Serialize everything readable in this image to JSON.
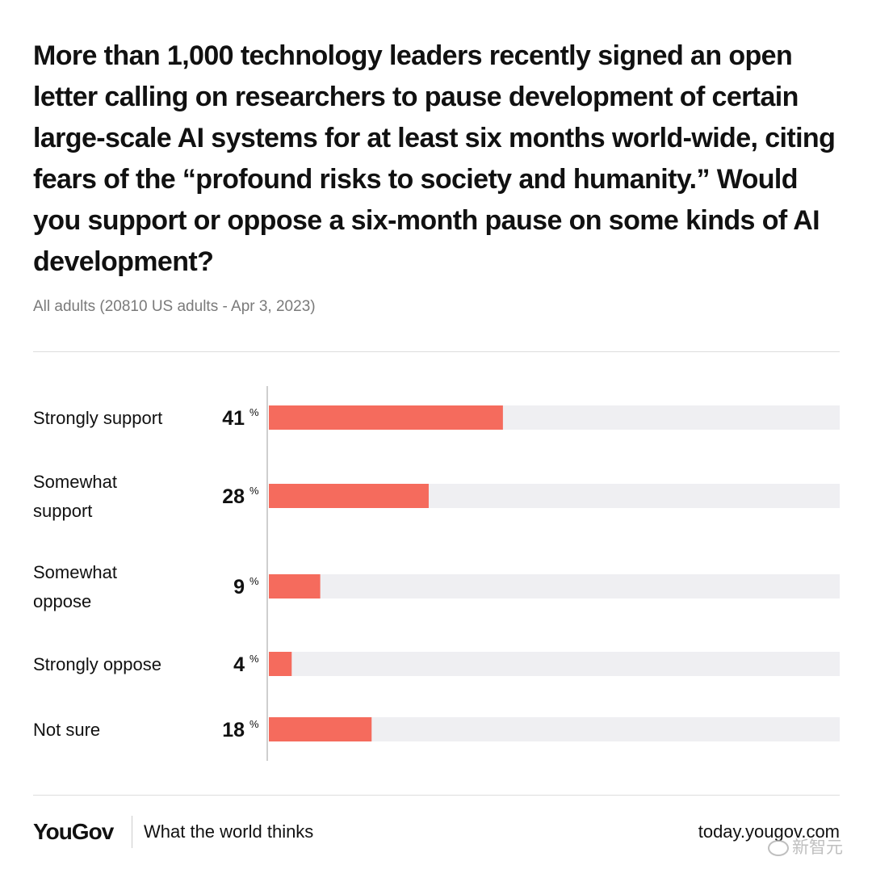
{
  "header": {
    "title": "More than 1,000 technology leaders recently signed an open letter calling on researchers to pause development of certain large-scale AI systems for at least six months world-wide, citing fears of the “profound risks to society and humanity.” Would you support or oppose a six-month pause on some kinds of AI development?",
    "subtitle": "All adults (20810 US adults - Apr 3, 2023)"
  },
  "chart_data": {
    "type": "bar",
    "orientation": "horizontal",
    "categories": [
      [
        "Strongly support"
      ],
      [
        "Somewhat",
        "support"
      ],
      [
        "Somewhat",
        "oppose"
      ],
      [
        "Strongly oppose"
      ],
      [
        "Not sure"
      ]
    ],
    "values": [
      41,
      28,
      9,
      4,
      18
    ],
    "unit": "%",
    "xlim": [
      0,
      100
    ],
    "bar_color": "#f56b5d",
    "track_color": "#efeff2"
  },
  "footer": {
    "brand": "YouGov",
    "tagline": "What the world thinks",
    "site": "today.yougov.com"
  },
  "watermark": "新智元",
  "colors": {
    "accent": "#f56b5d",
    "text": "#111111",
    "muted": "#7a7a7a"
  }
}
